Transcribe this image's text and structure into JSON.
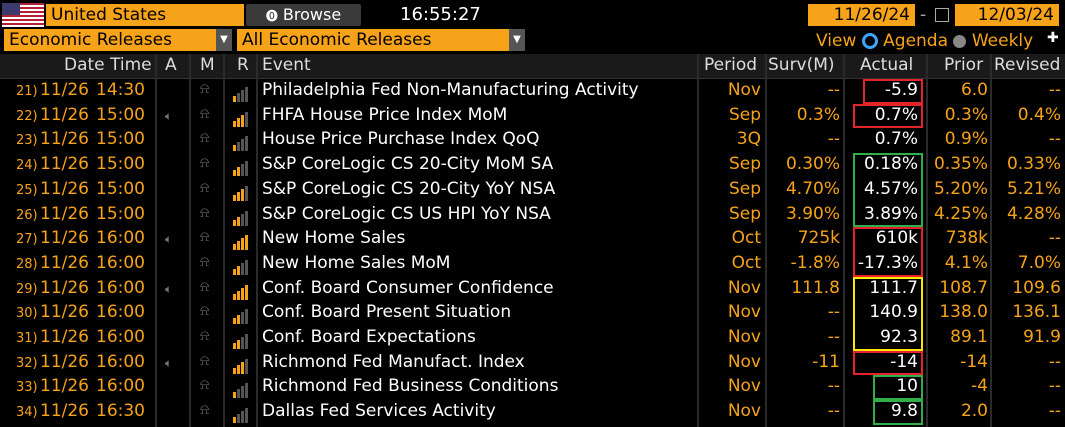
{
  "toolbar": {
    "country": "United States",
    "browse_label": "Browse",
    "time": "16:55:27",
    "start_date": "11/26/24",
    "date_sep": "-",
    "end_date": "12/03/24",
    "category": "Economic Releases",
    "filter": "All Economic Releases",
    "view_label": "View",
    "agenda_label": "Agenda",
    "weekly_label": "Weekly"
  },
  "columns": {
    "datetime": "Date Time",
    "a": "A",
    "m": "M",
    "r": "R",
    "event": "Event",
    "period": "Period",
    "survey": "Surv(M)",
    "actual": "Actual",
    "prior": "Prior",
    "revised": "Revised"
  },
  "rows": [
    {
      "num": "21)",
      "date": "11/26",
      "time": "14:30",
      "alert": false,
      "rel": 1,
      "event": "Philadelphia Fed Non-Manufacturing Activity",
      "period": "Nov",
      "survey": "--",
      "actual": "-5.9",
      "prior": "6.0",
      "revised": "--"
    },
    {
      "num": "22)",
      "date": "11/26",
      "time": "15:00",
      "alert": true,
      "rel": 3,
      "event": "FHFA House Price Index MoM",
      "period": "Sep",
      "survey": "0.3%",
      "actual": "0.7%",
      "prior": "0.3%",
      "revised": "0.4%"
    },
    {
      "num": "23)",
      "date": "11/26",
      "time": "15:00",
      "alert": false,
      "rel": 1,
      "event": "House Price Purchase Index QoQ",
      "period": "3Q",
      "survey": "--",
      "actual": "0.7%",
      "prior": "0.9%",
      "revised": "--"
    },
    {
      "num": "24)",
      "date": "11/26",
      "time": "15:00",
      "alert": false,
      "rel": 2,
      "event": "S&P CoreLogic CS 20-City MoM SA",
      "period": "Sep",
      "survey": "0.30%",
      "actual": "0.18%",
      "prior": "0.35%",
      "revised": "0.33%"
    },
    {
      "num": "25)",
      "date": "11/26",
      "time": "15:00",
      "alert": false,
      "rel": 3,
      "event": "S&P CoreLogic CS 20-City YoY NSA",
      "period": "Sep",
      "survey": "4.70%",
      "actual": "4.57%",
      "prior": "5.20%",
      "revised": "5.21%"
    },
    {
      "num": "26)",
      "date": "11/26",
      "time": "15:00",
      "alert": false,
      "rel": 2,
      "event": "S&P CoreLogic CS US HPI YoY NSA",
      "period": "Sep",
      "survey": "3.90%",
      "actual": "3.89%",
      "prior": "4.25%",
      "revised": "4.28%"
    },
    {
      "num": "27)",
      "date": "11/26",
      "time": "16:00",
      "alert": true,
      "rel": 4,
      "event": "New Home Sales",
      "period": "Oct",
      "survey": "725k",
      "actual": "610k",
      "prior": "738k",
      "revised": "--"
    },
    {
      "num": "28)",
      "date": "11/26",
      "time": "16:00",
      "alert": false,
      "rel": 2,
      "event": "New Home Sales MoM",
      "period": "Oct",
      "survey": "-1.8%",
      "actual": "-17.3%",
      "prior": "4.1%",
      "revised": "7.0%"
    },
    {
      "num": "29)",
      "date": "11/26",
      "time": "16:00",
      "alert": true,
      "rel": 4,
      "event": "Conf. Board Consumer Confidence",
      "period": "Nov",
      "survey": "111.8",
      "actual": "111.7",
      "prior": "108.7",
      "revised": "109.6"
    },
    {
      "num": "30)",
      "date": "11/26",
      "time": "16:00",
      "alert": false,
      "rel": 2,
      "event": "Conf. Board Present Situation",
      "period": "Nov",
      "survey": "--",
      "actual": "140.9",
      "prior": "138.0",
      "revised": "136.1"
    },
    {
      "num": "31)",
      "date": "11/26",
      "time": "16:00",
      "alert": false,
      "rel": 2,
      "event": "Conf. Board Expectations",
      "period": "Nov",
      "survey": "--",
      "actual": "92.3",
      "prior": "89.1",
      "revised": "91.9"
    },
    {
      "num": "32)",
      "date": "11/26",
      "time": "16:00",
      "alert": true,
      "rel": 3,
      "event": "Richmond Fed Manufact. Index",
      "period": "Nov",
      "survey": "-11",
      "actual": "-14",
      "prior": "-14",
      "revised": "--"
    },
    {
      "num": "33)",
      "date": "11/26",
      "time": "16:00",
      "alert": false,
      "rel": 1,
      "event": "Richmond Fed Business Conditions",
      "period": "Nov",
      "survey": "--",
      "actual": "10",
      "prior": "-4",
      "revised": "--"
    },
    {
      "num": "34)",
      "date": "11/26",
      "time": "16:30",
      "alert": false,
      "rel": 1,
      "event": "Dallas Fed Services Activity",
      "period": "Nov",
      "survey": "--",
      "actual": "9.8",
      "prior": "2.0",
      "revised": "--"
    }
  ],
  "highlights": [
    {
      "rows": [
        0
      ],
      "color": "red"
    },
    {
      "rows": [
        1
      ],
      "color": "red"
    },
    {
      "rows": [
        3,
        4,
        5
      ],
      "color": "green"
    },
    {
      "rows": [
        6,
        7
      ],
      "color": "red"
    },
    {
      "rows": [
        8,
        9,
        10
      ],
      "color": "yellow"
    },
    {
      "rows": [
        11
      ],
      "color": "red"
    },
    {
      "rows": [
        12
      ],
      "color": "green"
    },
    {
      "rows": [
        13
      ],
      "color": "green"
    }
  ],
  "colors": {
    "accent": "#f7a319",
    "red": "#e5232b",
    "green": "#2fae4a",
    "yellow": "#ffe600"
  }
}
